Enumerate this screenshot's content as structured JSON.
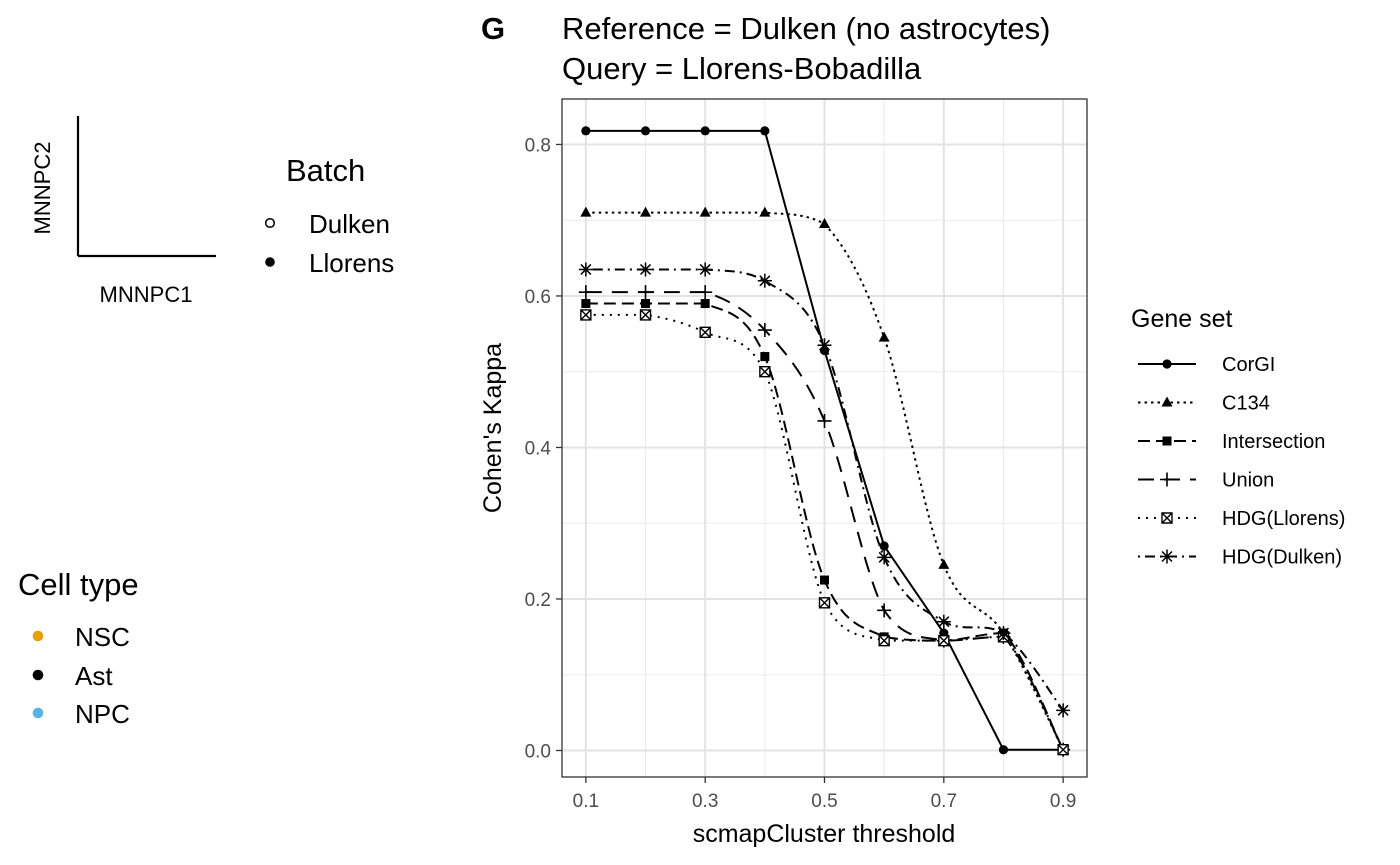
{
  "left_panel": {
    "axis_x_label": "MNNPC1",
    "axis_y_label": "MNNPC2",
    "batch_legend": {
      "title": "Batch",
      "items": [
        {
          "label": "Dulken",
          "marker": "open-circle"
        },
        {
          "label": "Llorens",
          "marker": "filled-circle"
        }
      ]
    },
    "celltype_legend": {
      "title": "Cell type",
      "items": [
        {
          "label": "NSC",
          "color": "#E69F00"
        },
        {
          "label": "Ast",
          "color": "#000000"
        },
        {
          "label": "NPC",
          "color": "#56B4E9"
        }
      ]
    }
  },
  "panel_letter": "G",
  "chart_data": {
    "type": "line",
    "title_line1": "Reference = Dulken (no astrocytes)",
    "title_line2": "Query = Llorens-Bobadilla",
    "xlabel": "scmapCluster threshold",
    "ylabel": "Cohen's Kappa",
    "x": [
      0.1,
      0.2,
      0.3,
      0.4,
      0.5,
      0.6,
      0.7,
      0.8,
      0.9
    ],
    "xlim": [
      0.06,
      0.94
    ],
    "ylim": [
      -0.035,
      0.86
    ],
    "x_ticks": [
      "0.1",
      "0.3",
      "0.5",
      "0.7",
      "0.9"
    ],
    "x_tick_values": [
      0.1,
      0.3,
      0.5,
      0.7,
      0.9
    ],
    "y_ticks": [
      "0.0",
      "0.2",
      "0.4",
      "0.6",
      "0.8"
    ],
    "y_tick_values": [
      0.0,
      0.2,
      0.4,
      0.6,
      0.8
    ],
    "grid": true,
    "legend_title": "Gene set",
    "legend_position": "right",
    "series": [
      {
        "name": "CorGI",
        "linetype": "solid",
        "marker": "circle",
        "values": [
          0.818,
          0.818,
          0.818,
          0.818,
          0.528,
          0.27,
          0.155,
          0.001,
          0.001
        ]
      },
      {
        "name": "C134",
        "linetype": "dotted",
        "marker": "triangle",
        "values": [
          0.71,
          0.71,
          0.71,
          0.71,
          0.695,
          0.545,
          0.245,
          0.155,
          0.001
        ]
      },
      {
        "name": "Intersection",
        "linetype": "dashed",
        "marker": "square",
        "values": [
          0.59,
          0.59,
          0.59,
          0.52,
          0.225,
          0.15,
          0.145,
          0.155,
          0.001
        ]
      },
      {
        "name": "Union",
        "linetype": "longdash",
        "marker": "plus",
        "values": [
          0.605,
          0.605,
          0.605,
          0.555,
          0.435,
          0.185,
          0.145,
          0.15,
          0.001
        ]
      },
      {
        "name": "HDG(Llorens)",
        "linetype": "dotted-sparse",
        "marker": "boxcross",
        "values": [
          0.575,
          0.575,
          0.552,
          0.5,
          0.195,
          0.145,
          0.145,
          0.15,
          0.001
        ]
      },
      {
        "name": "HDG(Dulken)",
        "linetype": "dotdash",
        "marker": "asterisk",
        "values": [
          0.635,
          0.635,
          0.635,
          0.62,
          0.535,
          0.255,
          0.17,
          0.155,
          0.053
        ]
      }
    ]
  }
}
